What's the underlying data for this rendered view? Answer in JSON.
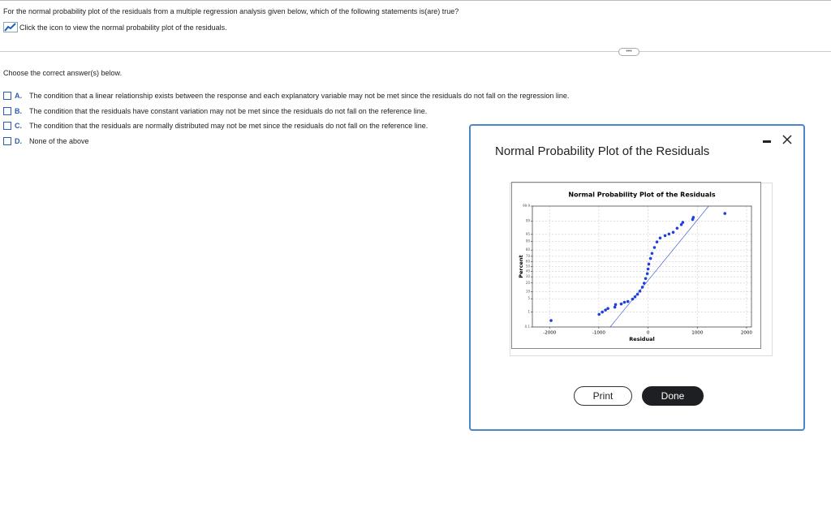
{
  "question": "For the normal probability plot of the residuals from a multiple regression analysis given below, which of the following statements is(are) true?",
  "link_text": "Click the icon to view the normal probability plot of the residuals.",
  "instruction": "Choose the correct answer(s) below.",
  "options": [
    {
      "letter": "A.",
      "text": "The condition that a linear relationship exists between the response and each explanatory variable may not be met since the residuals do not fall on the regression line."
    },
    {
      "letter": "B.",
      "text": "The condition that the residuals have constant variation may not be met since the residuals do not fall on the reference line."
    },
    {
      "letter": "C.",
      "text": "The condition that the residuals are normally distributed may not be met since the residuals do not fall on the reference line."
    },
    {
      "letter": "D.",
      "text": "None of the above"
    }
  ],
  "dialog": {
    "title": "Normal Probability Plot of the Residuals",
    "buttons": [
      "Print",
      "Done"
    ]
  },
  "chart_data": {
    "type": "scatter",
    "title": "Normal Probability Plot of the Residuals",
    "x_label": "Residual",
    "y_label": "Percent",
    "yscale": "normal-probability",
    "grid": true,
    "xlim": [
      -2350,
      2100
    ],
    "xticks": [
      -2000,
      -1000,
      0,
      1000,
      2000
    ],
    "ylim": [
      0.1,
      99.9
    ],
    "yticks": [
      0.1,
      1,
      5,
      10,
      20,
      30,
      40,
      50,
      60,
      70,
      80,
      90,
      95,
      99,
      99.9
    ],
    "color": "#1f3fe0",
    "x": [
      -1970,
      -995,
      -930,
      -865,
      -815,
      -675,
      -660,
      -545,
      -480,
      -410,
      -315,
      -265,
      -215,
      -165,
      -115,
      -80,
      -50,
      -15,
      0,
      15,
      50,
      80,
      130,
      180,
      245,
      345,
      425,
      510,
      590,
      675,
      705,
      905,
      920,
      1560
    ],
    "values": [
      0.29,
      0.73,
      1.0,
      1.3,
      1.6,
      1.9,
      2.6,
      2.8,
      3.4,
      3.7,
      4.8,
      6.1,
      7.8,
      10.4,
      14.6,
      19.7,
      27,
      35.8,
      45,
      55,
      66,
      75,
      83.5,
      89.6,
      92.8,
      94.3,
      95.2,
      96.0,
      97.5,
      98.4,
      98.8,
      99.2,
      99.4,
      99.67
    ],
    "reference_line": {
      "x": [
        -770,
        1230
      ],
      "values": [
        0.1,
        99.9
      ],
      "color": "#3050c8"
    }
  }
}
